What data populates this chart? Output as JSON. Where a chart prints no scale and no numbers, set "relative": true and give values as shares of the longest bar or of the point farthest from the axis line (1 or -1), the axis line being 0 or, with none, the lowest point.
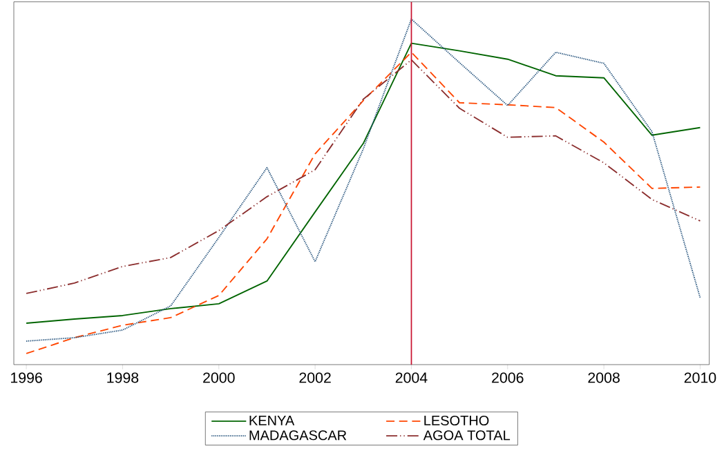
{
  "chart_data": {
    "type": "line",
    "relative": true,
    "x": [
      1996,
      1997,
      1998,
      1999,
      2000,
      2001,
      2002,
      2003,
      2004,
      2005,
      2006,
      2007,
      2008,
      2009,
      2010
    ],
    "xlim": [
      1995.74,
      2010.19
    ],
    "xticks": [
      1996,
      1998,
      2000,
      2002,
      2004,
      2006,
      2008,
      2010
    ],
    "series": [
      {
        "name": "KENYA",
        "color": "#006400",
        "line_style": "solid",
        "values": [
          0.12,
          0.132,
          0.142,
          0.162,
          0.176,
          0.242,
          0.442,
          0.64,
          0.93,
          0.908,
          0.884,
          0.836,
          0.83,
          0.664,
          0.686
        ]
      },
      {
        "name": "LESOTHO",
        "color": "#ff4500",
        "line_style": "dashed",
        "values": [
          0.032,
          0.078,
          0.114,
          0.136,
          0.2,
          0.364,
          0.61,
          0.764,
          0.904,
          0.758,
          0.752,
          0.744,
          0.644,
          0.51,
          0.514
        ]
      },
      {
        "name": "MADAGASCAR",
        "color": "#1f4e79",
        "line_style": "dotted",
        "values": [
          0.068,
          0.078,
          0.1,
          0.17,
          0.368,
          0.57,
          0.298,
          0.624,
          1,
          0.874,
          0.75,
          0.904,
          0.872,
          0.674,
          0.194
        ]
      },
      {
        "name": "AGOA TOTAL",
        "color": "#8b2d2d",
        "line_style": "dashdotdot",
        "values": [
          0.206,
          0.236,
          0.284,
          0.31,
          0.388,
          0.486,
          0.564,
          0.768,
          0.882,
          0.742,
          0.658,
          0.662,
          0.584,
          0.478,
          0.416
        ]
      }
    ],
    "ref_lines": [
      {
        "axis": "x",
        "value": 2004,
        "color": "#c8102e"
      }
    ],
    "legend": "bottom",
    "grid": false,
    "marker": "none"
  }
}
